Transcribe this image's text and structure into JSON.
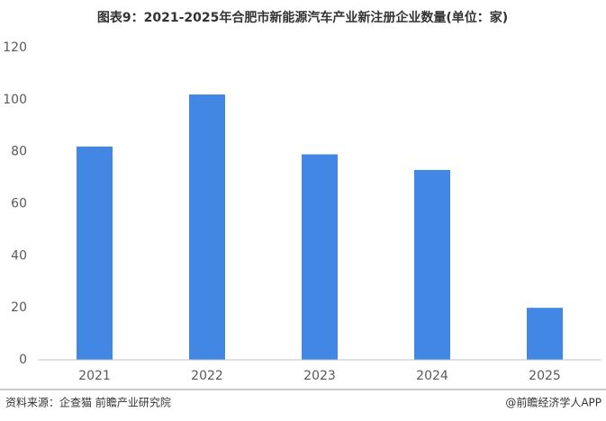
{
  "chart_data": {
    "type": "bar",
    "title": "图表9：2021-2025年合肥市新能源汽车产业新注册企业数量(单位：家)",
    "categories": [
      "2021",
      "2022",
      "2023",
      "2024",
      "2025"
    ],
    "values": [
      82,
      102,
      79,
      73,
      20
    ],
    "color": "#4287e3",
    "ylim": [
      0,
      120
    ],
    "yticks": [
      0,
      20,
      40,
      60,
      80,
      100,
      120
    ],
    "grid": false,
    "source": "资料来源：企查猫 前瞻产业研究院",
    "credit": "@前瞻经济学人APP"
  }
}
